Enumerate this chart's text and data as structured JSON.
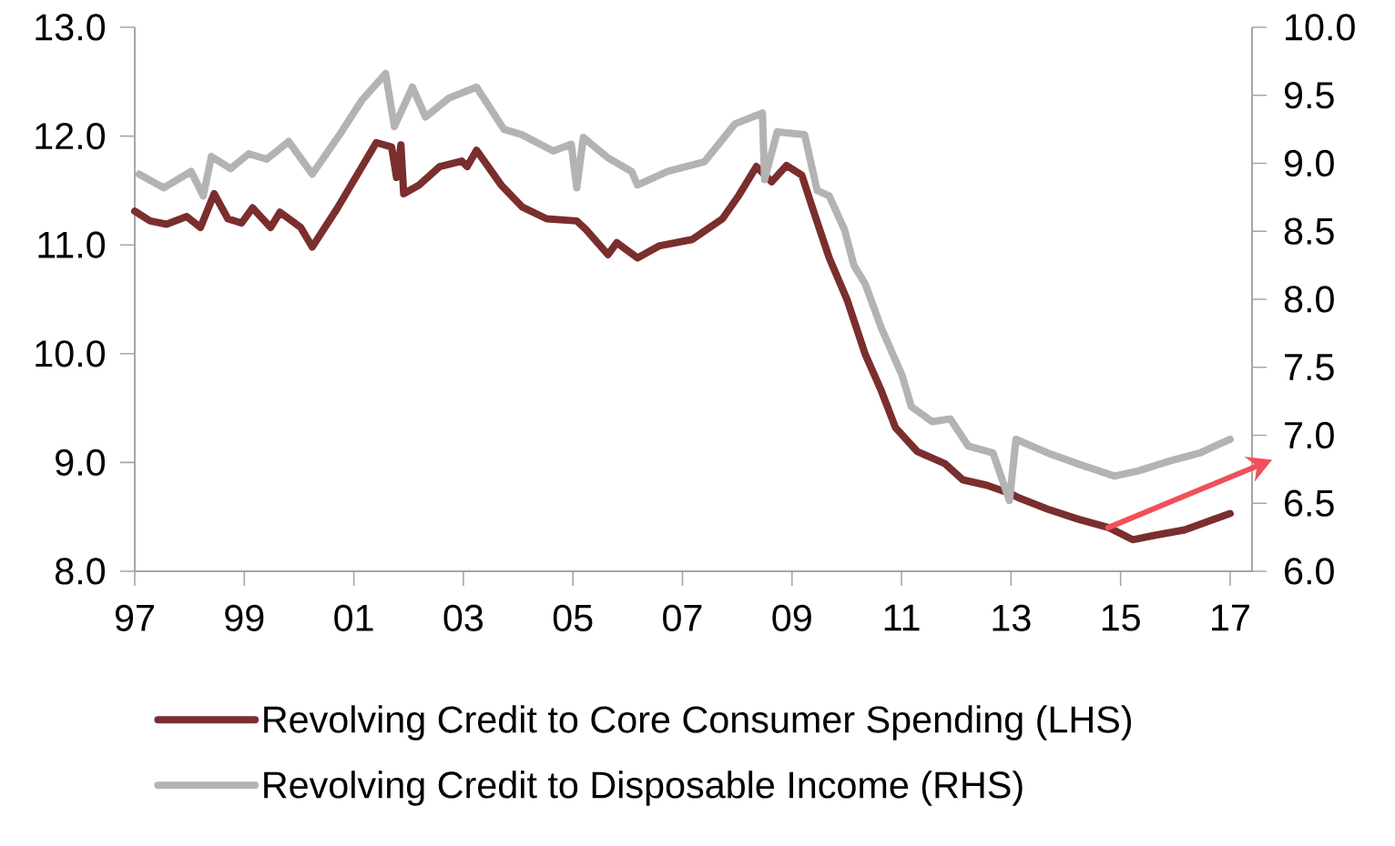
{
  "chart_data": {
    "type": "line",
    "xlim": [
      1997,
      2017.4
    ],
    "xticks": [
      {
        "value": 1997,
        "label": "97"
      },
      {
        "value": 1999,
        "label": "99"
      },
      {
        "value": 2001,
        "label": "01"
      },
      {
        "value": 2003,
        "label": "03"
      },
      {
        "value": 2005,
        "label": "05"
      },
      {
        "value": 2007,
        "label": "07"
      },
      {
        "value": 2009,
        "label": "09"
      },
      {
        "value": 2011,
        "label": "11"
      },
      {
        "value": 2013,
        "label": "13"
      },
      {
        "value": 2015,
        "label": "15"
      },
      {
        "value": 2017,
        "label": "17"
      }
    ],
    "ylim": [
      8,
      13
    ],
    "yticks": [
      {
        "value": 8,
        "label": "8.0"
      },
      {
        "value": 9,
        "label": "9.0"
      },
      {
        "value": 10,
        "label": "10.0"
      },
      {
        "value": 11,
        "label": "11.0"
      },
      {
        "value": 12,
        "label": "12.0"
      },
      {
        "value": 13,
        "label": "13.0"
      }
    ],
    "y2lim": [
      6,
      10
    ],
    "y2ticks": [
      {
        "value": 6,
        "label": "6.0"
      },
      {
        "value": 6.5,
        "label": "6.5"
      },
      {
        "value": 7,
        "label": "7.0"
      },
      {
        "value": 7.5,
        "label": "7.5"
      },
      {
        "value": 8,
        "label": "8.0"
      },
      {
        "value": 8.5,
        "label": "8.5"
      },
      {
        "value": 9,
        "label": "9.0"
      },
      {
        "value": 9.5,
        "label": "9.5"
      },
      {
        "value": 10,
        "label": "10.0"
      }
    ],
    "legend": "bottom",
    "line_style": "solid",
    "series": [
      {
        "name": "Revolving Credit to Core Consumer Spending (LHS)",
        "color": "#7a2e2e",
        "x": [
          1997.0,
          1997.28,
          1997.58,
          1997.95,
          1998.2,
          1998.45,
          1998.7,
          1998.95,
          1999.15,
          1999.48,
          1999.65,
          2000.03,
          2000.24,
          2000.69,
          2001.08,
          2001.41,
          2001.69,
          2001.78,
          2001.86,
          2001.91,
          2002.19,
          2002.57,
          2002.97,
          2003.07,
          2003.24,
          2003.69,
          2004.07,
          2004.52,
          2005.07,
          2005.24,
          2005.64,
          2005.8,
          2006.18,
          2006.57,
          2007.18,
          2007.73,
          2008.01,
          2008.35,
          2008.63,
          2008.9,
          2009.18,
          2009.4,
          2009.68,
          2010.01,
          2010.34,
          2010.63,
          2010.89,
          2011.29,
          2011.79,
          2012.12,
          2012.56,
          2013.01,
          2013.12,
          2013.67,
          2014.22,
          2014.79,
          2015.22,
          2015.62,
          2016.17,
          2016.72,
          2017.0
        ],
        "values": [
          11.31,
          11.22,
          11.19,
          11.26,
          11.16,
          11.47,
          11.24,
          11.2,
          11.34,
          11.16,
          11.3,
          11.16,
          10.98,
          11.33,
          11.66,
          11.94,
          11.9,
          11.62,
          11.92,
          11.47,
          11.55,
          11.72,
          11.77,
          11.72,
          11.87,
          11.55,
          11.35,
          11.24,
          11.22,
          11.14,
          10.91,
          11.02,
          10.88,
          10.99,
          11.05,
          11.24,
          11.44,
          11.72,
          11.58,
          11.73,
          11.64,
          11.3,
          10.88,
          10.49,
          9.99,
          9.66,
          9.32,
          9.1,
          8.99,
          8.84,
          8.79,
          8.71,
          8.68,
          8.57,
          8.48,
          8.4,
          8.29,
          8.33,
          8.38,
          8.48,
          8.53
        ]
      },
      {
        "name": "Revolving Credit to Disposable Income (RHS)",
        "color": "#b3b3b3",
        "axis": "y2",
        "x": [
          1997.08,
          1997.53,
          1998.03,
          1998.25,
          1998.4,
          1998.75,
          1999.08,
          1999.41,
          1999.81,
          2000.24,
          2000.74,
          2001.14,
          2001.58,
          2001.74,
          2002.07,
          2002.31,
          2002.74,
          2003.24,
          2003.74,
          2004.07,
          2004.64,
          2004.97,
          2005.07,
          2005.19,
          2005.64,
          2006.07,
          2006.18,
          2006.73,
          2007.4,
          2007.96,
          2008.46,
          2008.5,
          2008.73,
          2009.23,
          2009.46,
          2009.68,
          2009.96,
          2010.13,
          2010.34,
          2010.63,
          2011.01,
          2011.18,
          2011.56,
          2011.89,
          2012.22,
          2012.67,
          2012.97,
          2013.09,
          2013.67,
          2014.22,
          2014.89,
          2015.34,
          2015.89,
          2016.45,
          2016.83,
          2017.0
        ],
        "values": [
          8.92,
          8.82,
          8.94,
          8.76,
          9.05,
          8.96,
          9.07,
          9.03,
          9.16,
          8.92,
          9.21,
          9.46,
          9.66,
          9.27,
          9.56,
          9.34,
          9.48,
          9.56,
          9.25,
          9.21,
          9.09,
          9.14,
          8.82,
          9.19,
          9.04,
          8.94,
          8.84,
          8.94,
          9.01,
          9.29,
          9.37,
          8.88,
          9.23,
          9.21,
          8.8,
          8.76,
          8.51,
          8.25,
          8.11,
          7.79,
          7.44,
          7.21,
          7.1,
          7.12,
          6.92,
          6.87,
          6.52,
          6.97,
          6.87,
          6.79,
          6.7,
          6.74,
          6.81,
          6.87,
          6.94,
          6.97
        ]
      }
    ]
  }
}
